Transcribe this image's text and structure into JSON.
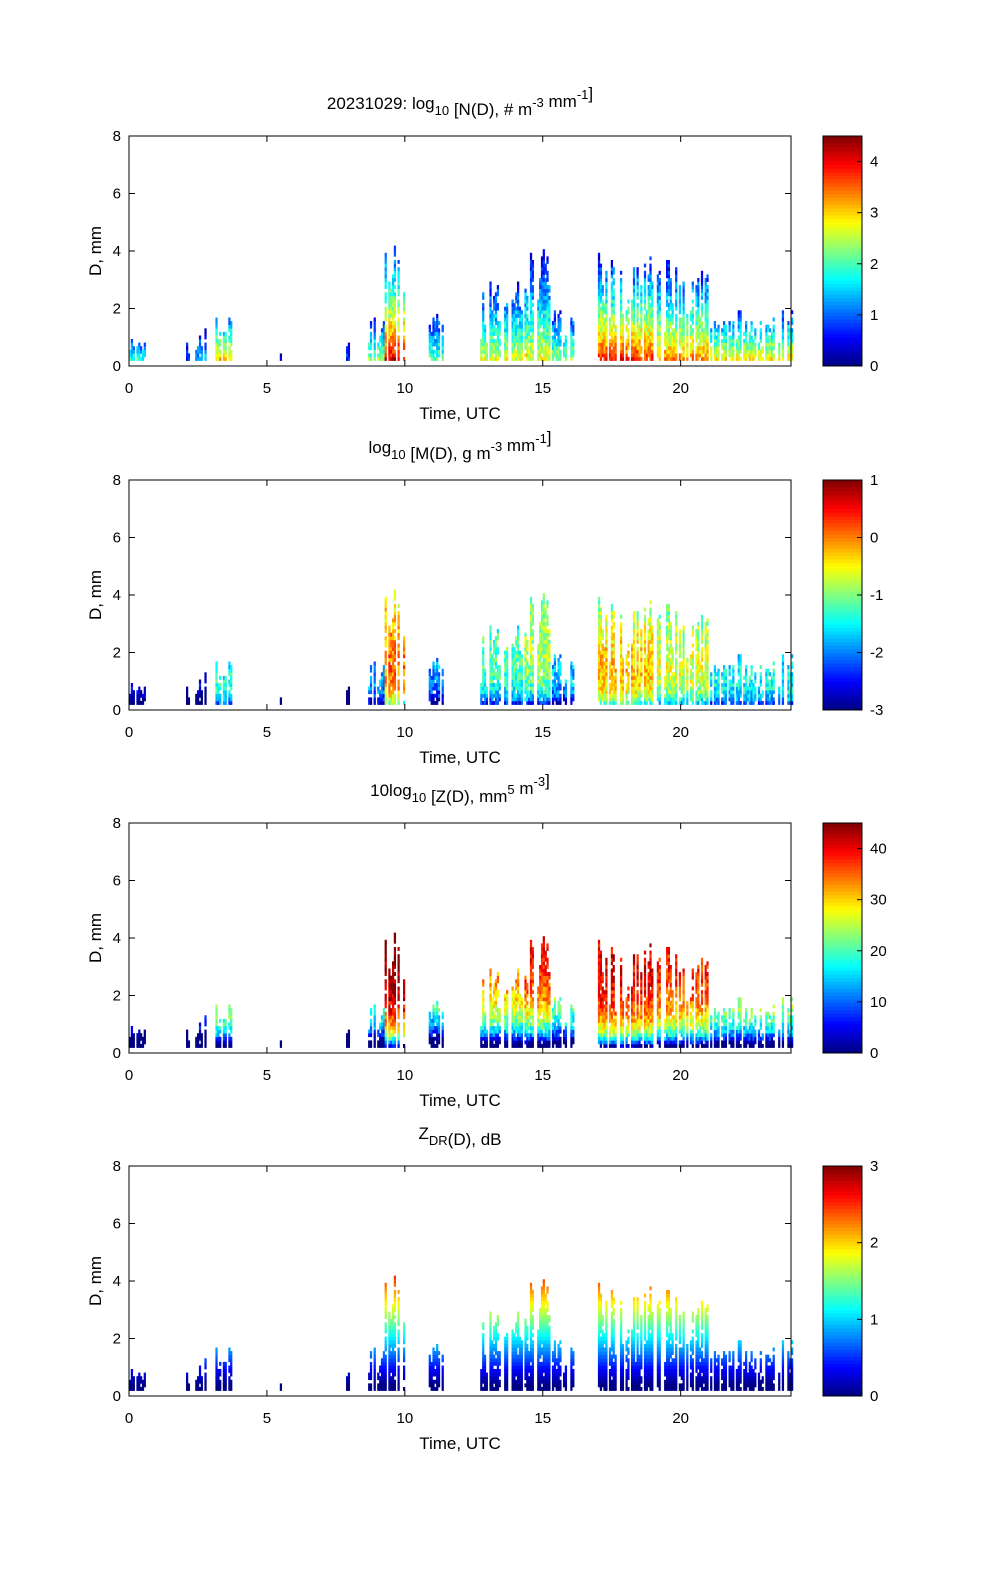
{
  "chart_data": [
    {
      "type": "heatmap",
      "quantity": "N",
      "title_parts": [
        {
          "text": "20231029: log"
        },
        {
          "text": "10",
          "style": "sub"
        },
        {
          "text": " [N(D), # m"
        },
        {
          "text": "-3",
          "style": "sup"
        },
        {
          "text": " mm"
        },
        {
          "text": "-1",
          "style": "sup"
        },
        {
          "text": "]"
        }
      ],
      "xlabel": "Time, UTC",
      "ylabel": "D, mm",
      "xlim": [
        0,
        24
      ],
      "ylim": [
        0,
        8
      ],
      "xticks": [
        "0",
        "5",
        "10",
        "15",
        "20"
      ],
      "yticks": [
        "0",
        "2",
        "4",
        "6",
        "8"
      ],
      "colorbar": {
        "range": [
          0,
          4.5
        ],
        "ticks": [
          "0",
          "1",
          "2",
          "3",
          "4"
        ]
      }
    },
    {
      "type": "heatmap",
      "quantity": "M",
      "title_parts": [
        {
          "text": "log"
        },
        {
          "text": "10",
          "style": "sub"
        },
        {
          "text": " [M(D), g m"
        },
        {
          "text": "-3",
          "style": "sup"
        },
        {
          "text": " mm"
        },
        {
          "text": "-1",
          "style": "sup"
        },
        {
          "text": "]"
        }
      ],
      "xlabel": "Time, UTC",
      "ylabel": "D, mm",
      "xlim": [
        0,
        24
      ],
      "ylim": [
        0,
        8
      ],
      "xticks": [
        "0",
        "5",
        "10",
        "15",
        "20"
      ],
      "yticks": [
        "0",
        "2",
        "4",
        "6",
        "8"
      ],
      "colorbar": {
        "range": [
          -3,
          1
        ],
        "ticks": [
          "-3",
          "-2",
          "-1",
          "0",
          "1"
        ]
      }
    },
    {
      "type": "heatmap",
      "quantity": "Z",
      "title_parts": [
        {
          "text": "10log"
        },
        {
          "text": "10",
          "style": "sub"
        },
        {
          "text": " [Z(D),  mm"
        },
        {
          "text": "5",
          "style": "sup"
        },
        {
          "text": " m"
        },
        {
          "text": "-3",
          "style": "sup"
        },
        {
          "text": "]"
        }
      ],
      "xlabel": "Time, UTC",
      "ylabel": "D, mm",
      "xlim": [
        0,
        24
      ],
      "ylim": [
        0,
        8
      ],
      "xticks": [
        "0",
        "5",
        "10",
        "15",
        "20"
      ],
      "yticks": [
        "0",
        "2",
        "4",
        "6",
        "8"
      ],
      "colorbar": {
        "range": [
          0,
          45
        ],
        "ticks": [
          "0",
          "10",
          "20",
          "30",
          "40"
        ]
      }
    },
    {
      "type": "heatmap",
      "quantity": "ZDR",
      "title_parts": [
        {
          "text": "Z"
        },
        {
          "text": "DR",
          "style": "sub"
        },
        {
          "text": "(D), dB"
        }
      ],
      "xlabel": "Time, UTC",
      "ylabel": "D, mm",
      "xlim": [
        0,
        24
      ],
      "ylim": [
        0,
        8
      ],
      "xticks": [
        "0",
        "5",
        "10",
        "15",
        "20"
      ],
      "yticks": [
        "0",
        "2",
        "4",
        "6",
        "8"
      ],
      "colorbar": {
        "range": [
          0,
          3
        ],
        "ticks": [
          "0",
          "1",
          "2",
          "3"
        ]
      }
    }
  ],
  "events_hours_maxD_peakLogN": [
    [
      0.0,
      0.6,
      1.0,
      2.3
    ],
    [
      2.05,
      2.15,
      0.8,
      1.0
    ],
    [
      2.4,
      2.8,
      1.3,
      1.8
    ],
    [
      3.1,
      3.7,
      1.9,
      3.6
    ],
    [
      5.45,
      5.6,
      0.5,
      1.0
    ],
    [
      7.85,
      7.95,
      1.0,
      1.0
    ],
    [
      8.6,
      9.2,
      1.8,
      2.8
    ],
    [
      9.2,
      10.0,
      4.7,
      4.4
    ],
    [
      10.8,
      11.4,
      1.9,
      2.5
    ],
    [
      12.7,
      14.2,
      3.2,
      3.0
    ],
    [
      14.3,
      15.2,
      4.1,
      3.1
    ],
    [
      15.3,
      16.1,
      2.0,
      2.8
    ],
    [
      16.8,
      19.0,
      3.9,
      4.2
    ],
    [
      19.0,
      21.0,
      3.7,
      3.7
    ],
    [
      21.0,
      24.0,
      2.0,
      3.4
    ]
  ]
}
